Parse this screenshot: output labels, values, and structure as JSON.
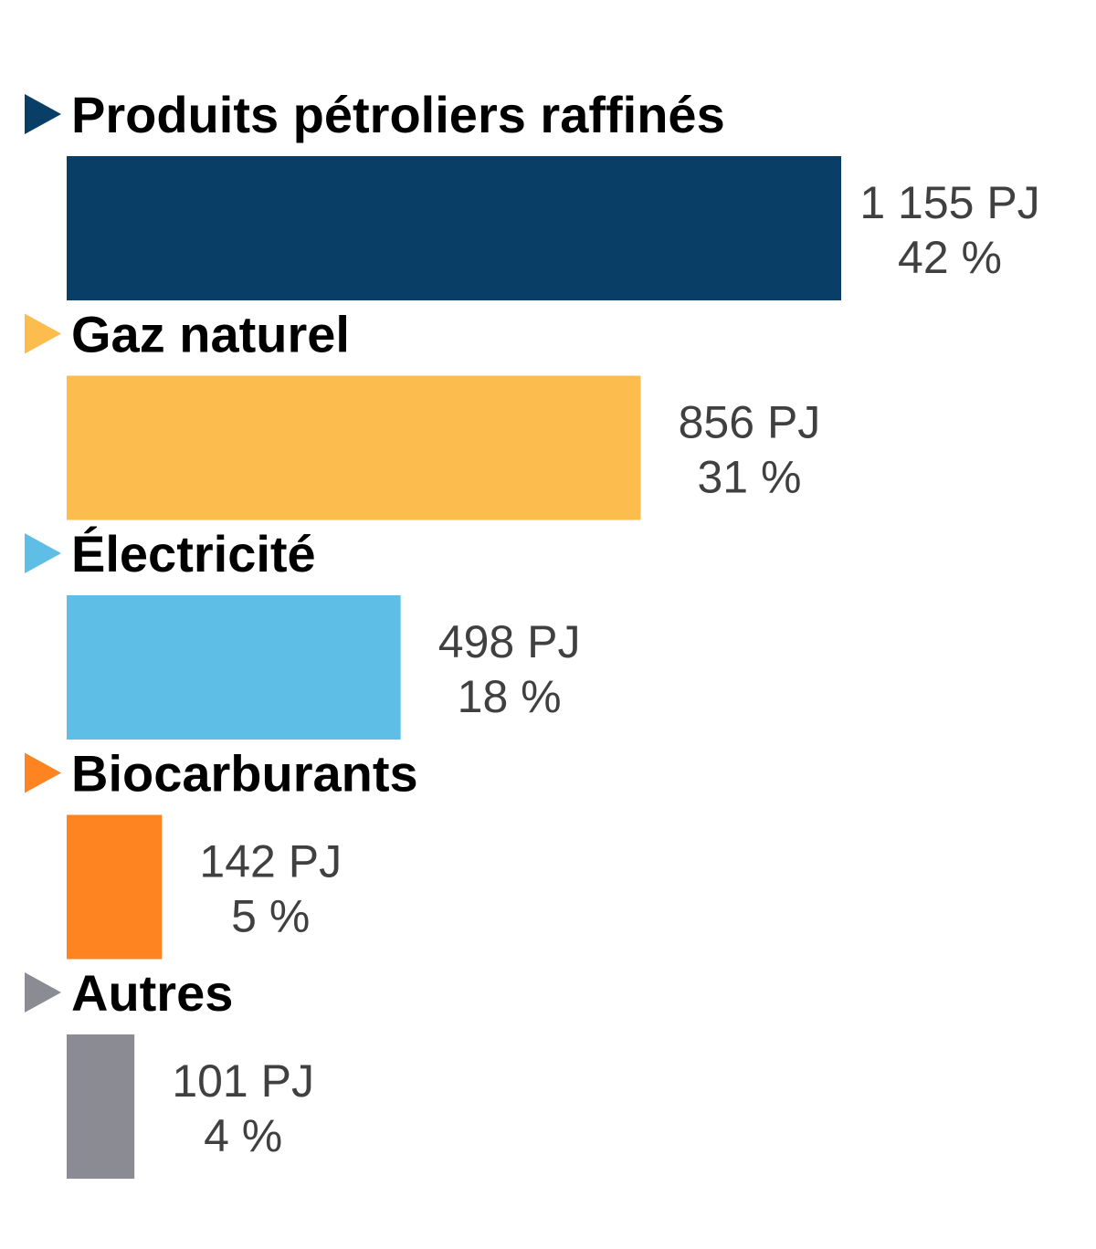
{
  "chart_data": {
    "type": "bar",
    "orientation": "horizontal",
    "title": "",
    "xlabel": "",
    "ylabel": "",
    "grid": false,
    "legend": "none",
    "xlim": [
      0,
      1155
    ],
    "categories": [
      "Produits pétroliers raffinés",
      "Gaz naturel",
      "Électricité",
      "Biocarburants",
      "Autres"
    ],
    "values": [
      1155,
      856,
      498,
      142,
      101
    ],
    "value_labels": [
      "1 155 PJ",
      "856 PJ",
      "498 PJ",
      "142 PJ",
      "101 PJ"
    ],
    "percent_labels": [
      "42 %",
      "31 %",
      "18 %",
      "5 %",
      "4 %"
    ],
    "colors": [
      "#093f66",
      "#fdbc4e",
      "#5fbee6",
      "#fd8421",
      "#8b8b94"
    ]
  }
}
